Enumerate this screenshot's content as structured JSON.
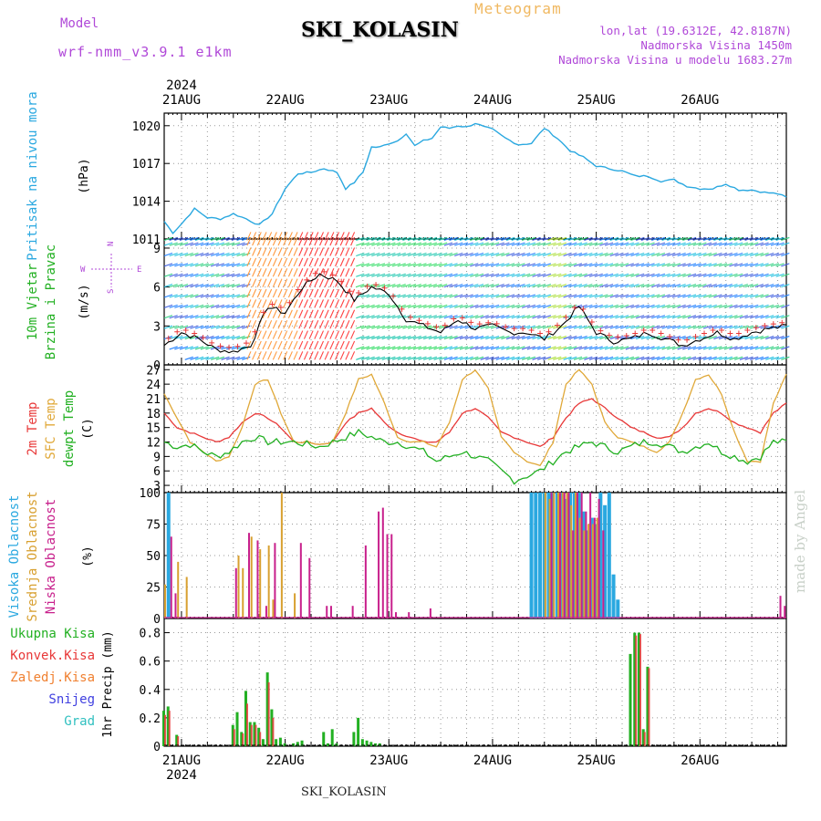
{
  "header": {
    "model_label": "Model",
    "model_value": "wrf-nmm_v3.9.1 e1km",
    "station": "SKI_KOLASIN",
    "title": "Meteogram",
    "lonlat": "lon,lat (19.6312E, 42.8187N)",
    "altitude": "Nadmorska Visina 1450m",
    "model_altitude": "Nadmorska Visina u modelu 1683.27m"
  },
  "footer": {
    "station": "SKI_KOLASIN",
    "credit": "made by Angel"
  },
  "time_axis": {
    "year": "2024",
    "days": [
      "21AUG",
      "22AUG",
      "23AUG",
      "24AUG",
      "25AUG",
      "26AUG"
    ],
    "start_hour_offset": -4,
    "end_hour_offset": 140
  },
  "panel_labels": {
    "pressure": [
      {
        "text": "Pritisak na nivou mora",
        "color": "#2aa8e0"
      }
    ],
    "pressure_unit": "(hPa)",
    "wind": [
      {
        "text": "10m Vjetar",
        "color": "#22b022"
      },
      {
        "text": "Brzina i Pravac",
        "color": "#22b022"
      }
    ],
    "wind_unit": "(m/s)",
    "wind_compass": {
      "w": "W",
      "e": "E",
      "n": "N",
      "s": "S"
    },
    "temp": [
      {
        "text": "2m Temp",
        "color": "#e83838"
      },
      {
        "text": "SFC Temp",
        "color": "#e0a838"
      },
      {
        "text": "dewpt Temp",
        "color": "#22b022"
      }
    ],
    "temp_unit": "(C)",
    "cloud": [
      {
        "text": "Visoka Oblacnost",
        "color": "#2aa8e0"
      },
      {
        "text": "Srednja Oblacnost",
        "color": "#d8a030"
      },
      {
        "text": "Niska Oblacnost",
        "color": "#c8208c"
      }
    ],
    "cloud_unit": "(%)",
    "precip_legend": [
      {
        "text": "Ukupna Kisa",
        "color": "#22b022"
      },
      {
        "text": "Konvek.Kisa",
        "color": "#e83838"
      },
      {
        "text": "Zaledj.Kisa",
        "color": "#f08030"
      },
      {
        "text": "Snijeg",
        "color": "#4040e0"
      },
      {
        "text": "Grad",
        "color": "#30c0c0"
      }
    ],
    "precip_unit": "1hr Precip (mm)"
  },
  "chart_data": [
    {
      "type": "line",
      "name": "pressure",
      "ylim": [
        1011,
        1021
      ],
      "yticks": [
        1011,
        1014,
        1017,
        1020
      ],
      "color": "#2aa8e0",
      "x_hours": [
        -4,
        -2,
        0,
        3,
        6,
        9,
        12,
        15,
        18,
        21,
        24,
        27,
        30,
        33,
        36,
        38,
        40,
        42,
        44,
        46,
        48,
        50,
        52,
        54,
        56,
        58,
        60,
        62,
        64,
        66,
        68,
        70,
        72,
        75,
        78,
        81,
        84,
        87,
        90,
        93,
        96,
        99,
        102,
        105,
        108,
        111,
        114,
        117,
        120,
        123,
        126,
        129,
        132,
        135,
        138,
        140
      ],
      "values": [
        1012.4,
        1011.5,
        1012.2,
        1013.4,
        1012.7,
        1012.6,
        1013.0,
        1012.6,
        1012.1,
        1013.0,
        1015.0,
        1016.2,
        1016.3,
        1016.6,
        1016.3,
        1015.0,
        1015.5,
        1016.3,
        1018.3,
        1018.3,
        1018.6,
        1018.8,
        1019.4,
        1018.4,
        1018.8,
        1019.0,
        1019.9,
        1019.8,
        1020.0,
        1019.9,
        1020.2,
        1019.9,
        1019.7,
        1019.0,
        1018.5,
        1018.6,
        1019.8,
        1019.0,
        1018.0,
        1017.5,
        1016.8,
        1016.6,
        1016.4,
        1016.0,
        1016.0,
        1015.6,
        1015.7,
        1015.2,
        1015.0,
        1015.0,
        1015.4,
        1014.9,
        1014.9,
        1014.7,
        1014.6,
        1014.3
      ]
    },
    {
      "type": "line",
      "name": "wind",
      "ylim": [
        0,
        9.7
      ],
      "yticks": [
        0,
        3,
        6,
        9
      ],
      "color": "#000000",
      "x_hours": [
        -4,
        0,
        4,
        8,
        12,
        16,
        20,
        24,
        28,
        32,
        36,
        40,
        44,
        48,
        52,
        56,
        60,
        64,
        68,
        72,
        76,
        80,
        84,
        88,
        92,
        96,
        100,
        104,
        108,
        112,
        116,
        120,
        124,
        128,
        132,
        136,
        140
      ],
      "values": [
        1.5,
        2.5,
        2.0,
        1.2,
        1.0,
        1.5,
        4.5,
        4.0,
        6.0,
        7.0,
        6.5,
        5.0,
        6.0,
        5.5,
        3.5,
        3.0,
        2.5,
        3.5,
        2.8,
        3.0,
        2.5,
        2.5,
        2.0,
        3.0,
        4.5,
        2.5,
        1.8,
        2.0,
        2.5,
        2.0,
        1.5,
        2.0,
        2.5,
        2.0,
        2.5,
        2.8,
        3.0
      ]
    },
    {
      "type": "line",
      "name": "temperature",
      "ylim": [
        1.5,
        28
      ],
      "yticks": [
        3,
        6,
        9,
        12,
        15,
        18,
        21,
        24,
        27
      ],
      "series": [
        {
          "name": "2m Temp",
          "color": "#e83838",
          "x_hours": [
            -4,
            -1,
            2,
            5,
            8,
            11,
            14,
            17,
            20,
            23,
            26,
            29,
            32,
            35,
            38,
            41,
            44,
            47,
            50,
            53,
            56,
            59,
            62,
            65,
            68,
            71,
            74,
            77,
            80,
            83,
            86,
            89,
            92,
            95,
            98,
            101,
            104,
            107,
            110,
            113,
            116,
            119,
            122,
            125,
            128,
            131,
            134,
            137,
            140
          ],
          "values": [
            18,
            15,
            14,
            13,
            12,
            13,
            16,
            18,
            17,
            15,
            12,
            12,
            11.5,
            12,
            16,
            18,
            19,
            16,
            14,
            13,
            12,
            12,
            14,
            18,
            19,
            17,
            14,
            13,
            12,
            11,
            13,
            17,
            20,
            21,
            19,
            17,
            15,
            14,
            13,
            13,
            15,
            18,
            19,
            18,
            16,
            15,
            14,
            18,
            20
          ]
        },
        {
          "name": "SFC Temp",
          "color": "#e0a838",
          "x_hours": [
            -4,
            -1,
            2,
            5,
            8,
            11,
            14,
            17,
            20,
            23,
            26,
            29,
            32,
            35,
            38,
            41,
            44,
            47,
            50,
            53,
            56,
            59,
            62,
            65,
            68,
            71,
            74,
            77,
            80,
            83,
            86,
            89,
            92,
            95,
            98,
            101,
            104,
            107,
            110,
            113,
            116,
            119,
            122,
            125,
            128,
            131,
            134,
            137,
            140
          ],
          "values": [
            22,
            17,
            12,
            10,
            8,
            9,
            15,
            24,
            25,
            18,
            12,
            12,
            11.5,
            12,
            18,
            25,
            26,
            20,
            13,
            12,
            12,
            11,
            16,
            25,
            27,
            23,
            13,
            10,
            8,
            7,
            12,
            24,
            27,
            24,
            16,
            13,
            12,
            11,
            10,
            12,
            18,
            25,
            26,
            22,
            14,
            8,
            8,
            20,
            26
          ]
        },
        {
          "name": "dewpt Temp",
          "color": "#22b022",
          "x_hours": [
            -4,
            -1,
            2,
            5,
            8,
            11,
            14,
            17,
            20,
            23,
            26,
            29,
            32,
            35,
            38,
            41,
            44,
            47,
            50,
            53,
            56,
            59,
            62,
            65,
            68,
            71,
            74,
            77,
            80,
            83,
            86,
            89,
            92,
            95,
            98,
            101,
            104,
            107,
            110,
            113,
            116,
            119,
            122,
            125,
            128,
            131,
            134,
            137,
            140
          ],
          "values": [
            12,
            11,
            11.5,
            10,
            9,
            10,
            12,
            13,
            12,
            12,
            12,
            11.5,
            11,
            12,
            13,
            14,
            13,
            12,
            12,
            11,
            10,
            8,
            9,
            10,
            9,
            8,
            6,
            4,
            5,
            6,
            8,
            10,
            11,
            12,
            11,
            10,
            11,
            12,
            12,
            11,
            10,
            11,
            12,
            10,
            9,
            8,
            9,
            12,
            12
          ]
        }
      ]
    },
    {
      "type": "bar",
      "name": "cloud_cover",
      "ylim": [
        0,
        100
      ],
      "yticks": [
        0,
        25,
        50,
        75,
        100
      ],
      "series": [
        {
          "name": "Visoka Oblacnost",
          "color": "#2aa8e0",
          "x_hours": [
            -3,
            81,
            82,
            83,
            84,
            85,
            86,
            87,
            88,
            89,
            90,
            91,
            92,
            93,
            94,
            95,
            96,
            97,
            98,
            99,
            100,
            101
          ],
          "values": [
            100,
            100,
            100,
            100,
            100,
            100,
            100,
            100,
            100,
            95,
            100,
            100,
            100,
            85,
            70,
            80,
            75,
            100,
            90,
            100,
            35,
            15
          ]
        },
        {
          "name": "Srednja Oblacnost",
          "color": "#d8a030",
          "x_hours": [
            -4,
            -1,
            1,
            13,
            14,
            16,
            18,
            20,
            21,
            23,
            26,
            84,
            85,
            86,
            87,
            88,
            89,
            90,
            91,
            92,
            93,
            94,
            95,
            96
          ],
          "values": [
            27,
            45,
            33,
            50,
            40,
            65,
            55,
            58,
            15,
            100,
            20,
            100,
            95,
            100,
            100,
            100,
            100,
            90,
            100,
            80,
            70,
            75,
            75,
            80
          ]
        },
        {
          "name": "Niska Oblacnost",
          "color": "#c8208c",
          "x_hours": [
            -3,
            -2,
            12,
            15,
            17,
            19,
            21,
            27,
            29,
            33,
            34,
            39,
            42,
            45,
            46,
            47,
            48,
            49,
            52,
            57,
            85,
            87,
            88,
            89,
            90,
            91,
            92,
            93,
            94,
            95,
            96,
            97,
            138,
            139
          ],
          "values": [
            65,
            20,
            40,
            68,
            62,
            10,
            60,
            60,
            48,
            10,
            10,
            10,
            58,
            85,
            88,
            67,
            67,
            5,
            5,
            8,
            100,
            100,
            100,
            100,
            70,
            100,
            100,
            85,
            100,
            80,
            95,
            70,
            18,
            10
          ]
        }
      ]
    },
    {
      "type": "bar",
      "name": "precipitation",
      "ylim": [
        0,
        0.9
      ],
      "yticks": [
        0,
        0.2,
        0.4,
        0.6,
        0.8
      ],
      "series": [
        {
          "name": "Ukupna Kisa",
          "color": "#22b022",
          "x_hours": [
            -4,
            -3,
            -1,
            12,
            13,
            14,
            15,
            16,
            17,
            18,
            19,
            20,
            21,
            22,
            23,
            24,
            26,
            27,
            28,
            33,
            34,
            35,
            36,
            40,
            41,
            42,
            43,
            44,
            45,
            46,
            104,
            105,
            106,
            107,
            108
          ],
          "values": [
            0.25,
            0.28,
            0.08,
            0.15,
            0.24,
            0.1,
            0.39,
            0.17,
            0.17,
            0.13,
            0.05,
            0.52,
            0.26,
            0.05,
            0.06,
            0.02,
            0.02,
            0.03,
            0.04,
            0.1,
            0.02,
            0.12,
            0.02,
            0.1,
            0.2,
            0.05,
            0.04,
            0.03,
            0.02,
            0.02,
            0.65,
            0.8,
            0.8,
            0.12,
            0.56
          ]
        },
        {
          "name": "Konvek.Kisa",
          "color": "#e83838",
          "x_hours": [
            -4,
            -3,
            -1,
            12,
            14,
            15,
            16,
            17,
            18,
            20,
            21,
            105,
            106,
            107,
            108
          ],
          "values": [
            0.22,
            0.25,
            0.07,
            0.12,
            0.09,
            0.3,
            0.15,
            0.15,
            0.1,
            0.45,
            0.2,
            0.78,
            0.79,
            0.1,
            0.55
          ]
        }
      ]
    }
  ]
}
